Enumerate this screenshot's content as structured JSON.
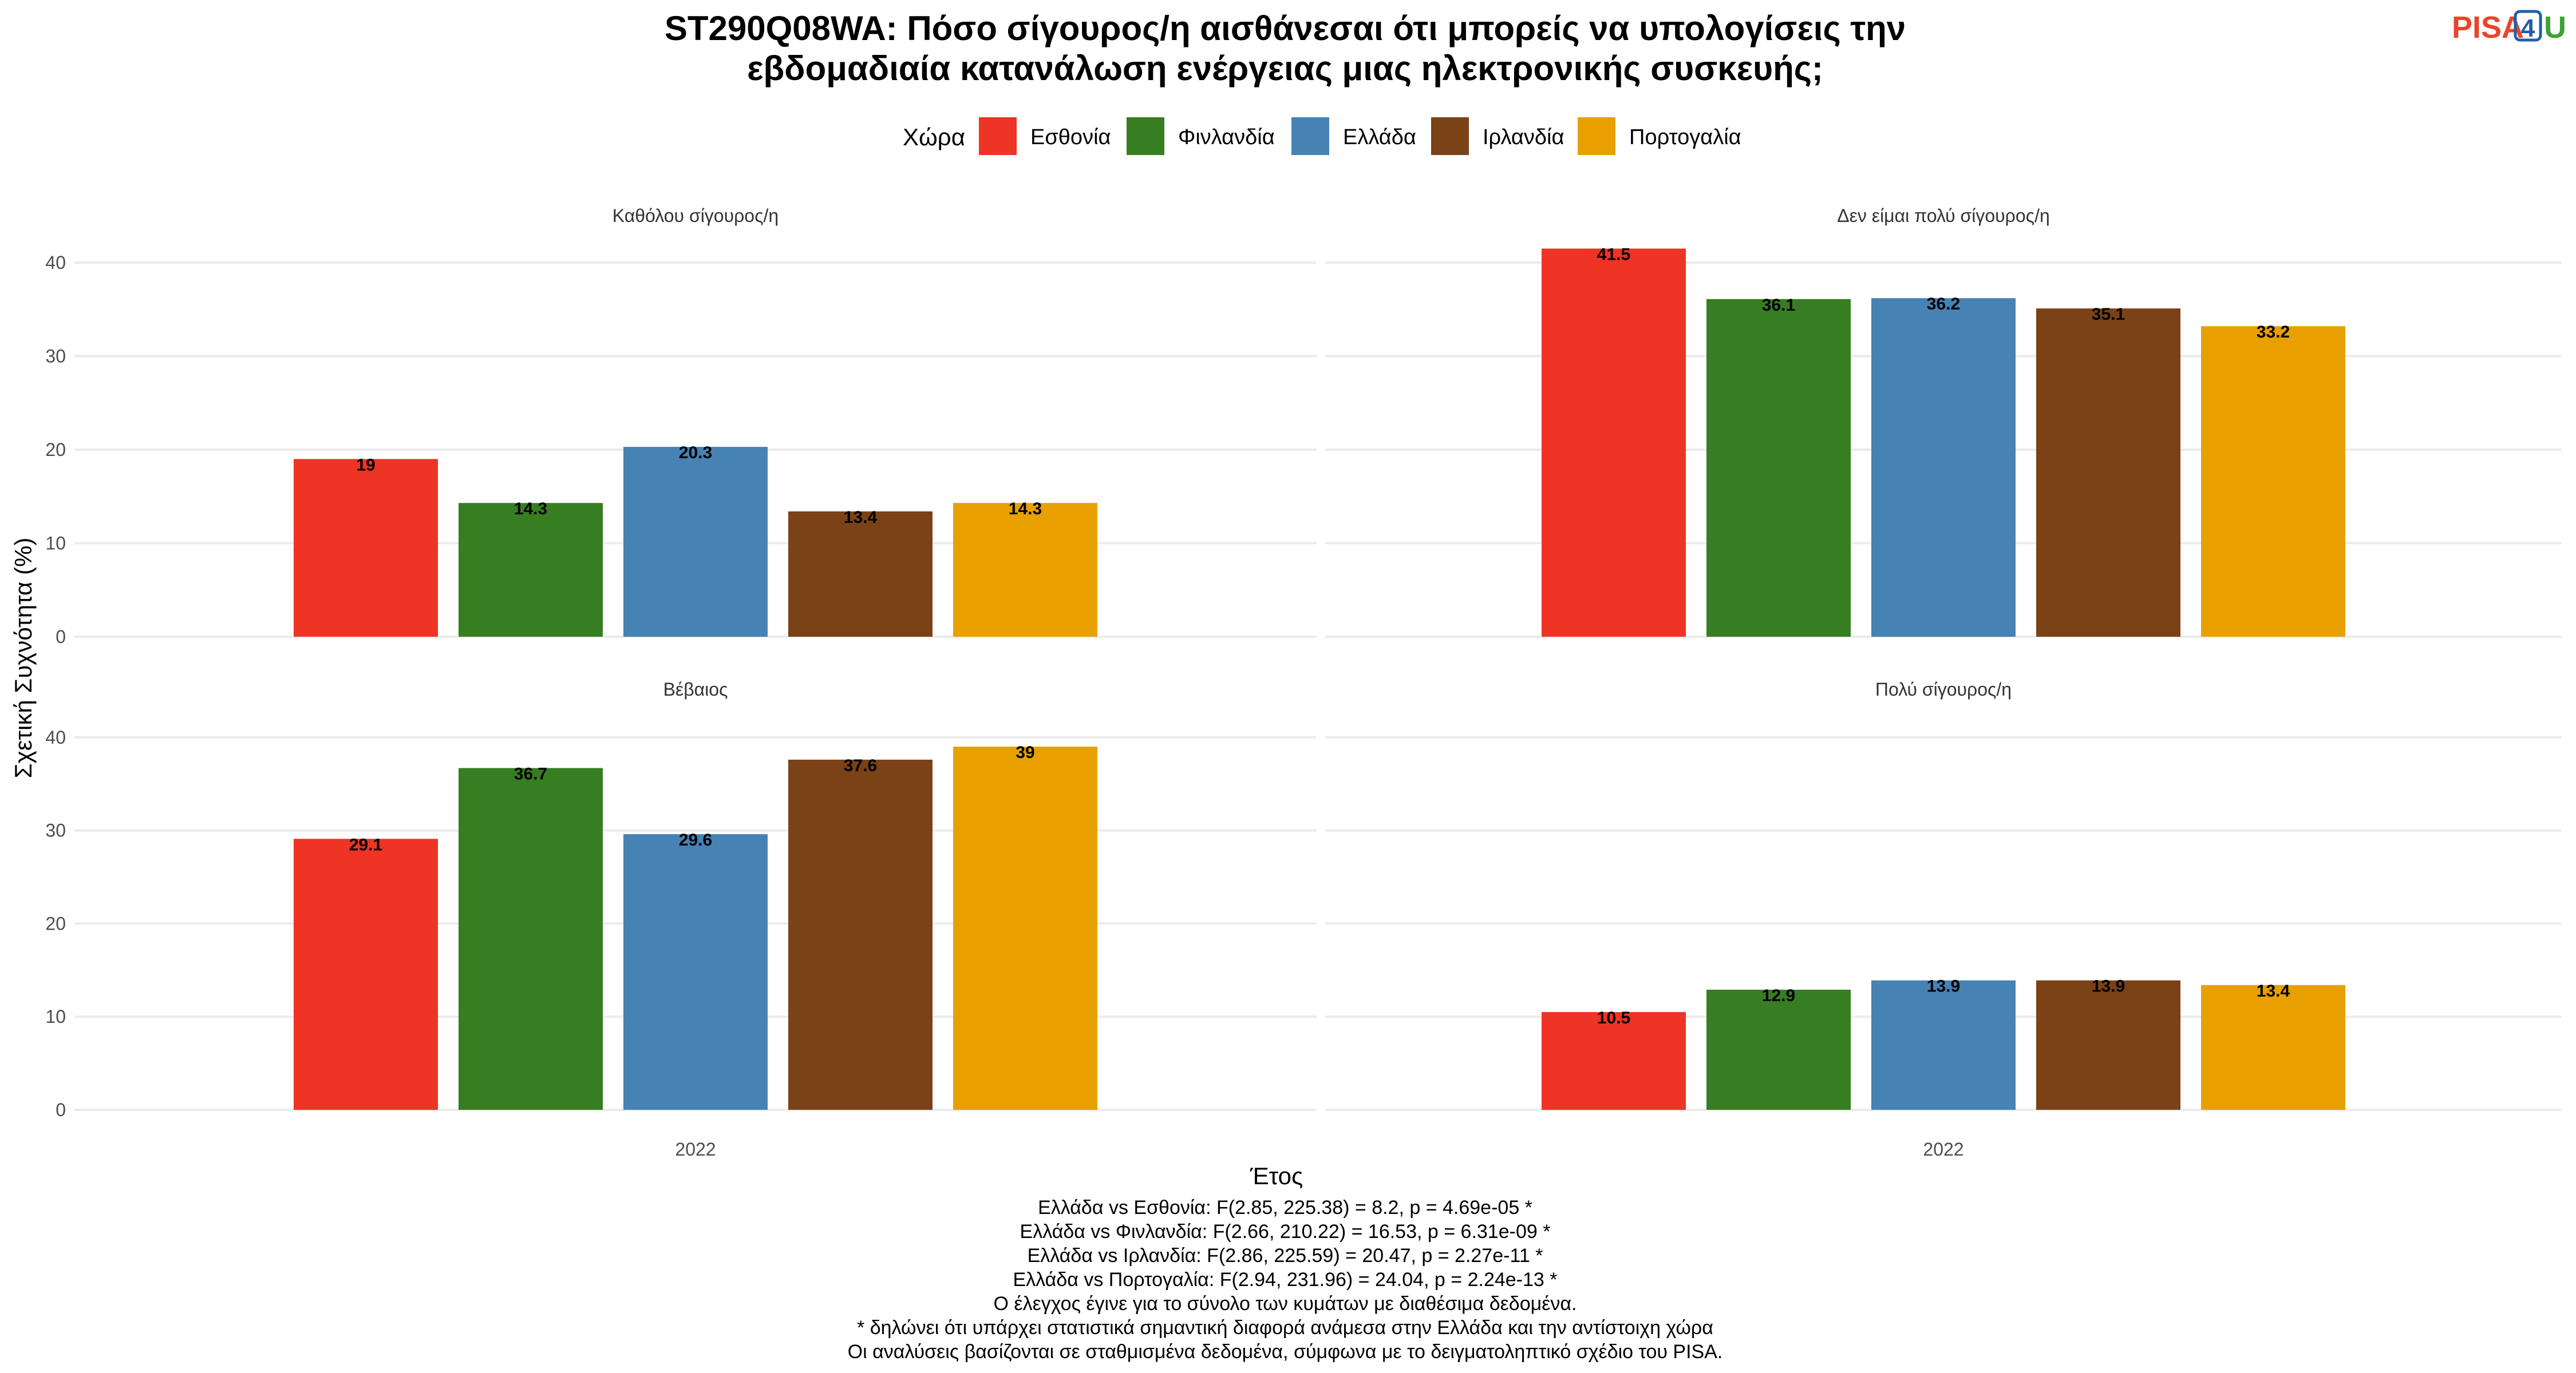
{
  "title_lines": [
    "ST290Q08WA: Πόσο σίγουρος/η αισθάνεσαι ότι μπορείς να υπολογίσεις την",
    "εβδομαδιαία κατανάλωση ενέργειας μιας ηλεκτρονικής συσκευής;"
  ],
  "logo": {
    "part1": "PISA",
    "part2": "4",
    "part3": "U",
    "color1": "#e8452c",
    "color2": "#1f5fa8",
    "color3": "#3aa535"
  },
  "legend": {
    "title": "Χώρα",
    "placement": "top"
  },
  "notes": [
    "Ελλάδα vs Εσθονία: F(2.85, 225.38) = 8.2, p = 4.69e-05 *",
    "Ελλάδα vs Φινλανδία: F(2.66, 210.22) = 16.53, p = 6.31e-09 *",
    "Ελλάδα vs Ιρλανδία: F(2.86, 225.59) = 20.47, p = 2.27e-11 *",
    "Ελλάδα vs Πορτογαλία: F(2.94, 231.96) = 24.04, p = 2.24e-13 *",
    "Ο έλεγχος έγινε για το σύνολο των κυμάτων με διαθέσιμα δεδομένα.",
    "* δηλώνει ότι υπάρχει στατιστικά σημαντική διαφορά ανάμεσα στην Ελλάδα και την αντίστοιχη χώρα",
    "Οι αναλύσεις βασίζονται σε σταθμισμένα δεδομένα, σύμφωνα με το δειγματοληπτικό σχέδιο του PISA."
  ],
  "chart_data": {
    "type": "bar",
    "xlabel": "Έτος",
    "ylabel": "Σχετική Συχνότητα (%)",
    "ylim": [
      0,
      43
    ],
    "yticks": [
      0,
      10,
      20,
      30,
      40
    ],
    "grid": true,
    "categories": [
      "2022"
    ],
    "series": [
      {
        "name": "Εσθονία",
        "color": "#ee3424"
      },
      {
        "name": "Φινλανδία",
        "color": "#377e22"
      },
      {
        "name": "Ελλάδα",
        "color": "#4682b4"
      },
      {
        "name": "Ιρλανδία",
        "color": "#7a4216"
      },
      {
        "name": "Πορτογαλία",
        "color": "#e8a000"
      }
    ],
    "facets": [
      {
        "title": "Καθόλου σίγουρος/η",
        "values": [
          19,
          14.3,
          20.3,
          13.4,
          14.3
        ],
        "labels": [
          "19",
          "14.3",
          "20.3",
          "13.4",
          "14.3"
        ]
      },
      {
        "title": "Δεν είμαι πολύ σίγουρος/η",
        "values": [
          41.5,
          36.1,
          36.2,
          35.1,
          33.2
        ],
        "labels": [
          "41.5",
          "36.1",
          "36.2",
          "35.1",
          "33.2"
        ]
      },
      {
        "title": "Βέβαιος",
        "values": [
          29.1,
          36.7,
          29.6,
          37.6,
          39
        ],
        "labels": [
          "29.1",
          "36.7",
          "29.6",
          "37.6",
          "39"
        ]
      },
      {
        "title": "Πολύ σίγουρος/η",
        "values": [
          10.5,
          12.9,
          13.9,
          13.9,
          13.4
        ],
        "labels": [
          "10.5",
          "12.9",
          "13.9",
          "13.9",
          "13.4"
        ]
      }
    ]
  }
}
